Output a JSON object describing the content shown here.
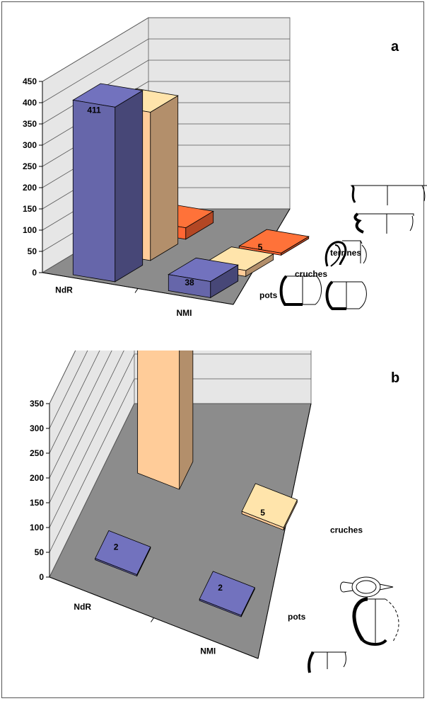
{
  "chart_data": [
    {
      "panel_label": "a",
      "type": "bar",
      "ylim": [
        0,
        450
      ],
      "y_ticks": [
        "0",
        "50",
        "100",
        "150",
        "200",
        "250",
        "300",
        "350",
        "400",
        "450"
      ],
      "categories": [
        "NdR",
        "NMI"
      ],
      "series": [
        {
          "name": "pots",
          "values": [
            411,
            38
          ],
          "color": "#6666aa"
        },
        {
          "name": "cruches",
          "values": [
            349,
            14
          ],
          "color": "#ffcc99"
        },
        {
          "name": "terrines",
          "values": [
            27,
            5
          ],
          "color": "#ff6633"
        }
      ],
      "grid": true
    },
    {
      "panel_label": "b",
      "type": "bar",
      "ylim": [
        0,
        350
      ],
      "y_ticks": [
        "0",
        "50",
        "100",
        "150",
        "200",
        "250",
        "300",
        "350"
      ],
      "categories": [
        "NdR",
        "NMI"
      ],
      "series": [
        {
          "name": "pots",
          "values": [
            2,
            2
          ],
          "color": "#6666aa"
        },
        {
          "name": "cruches",
          "values": [
            321,
            5
          ],
          "color": "#ffcc99"
        }
      ],
      "grid": true
    }
  ]
}
